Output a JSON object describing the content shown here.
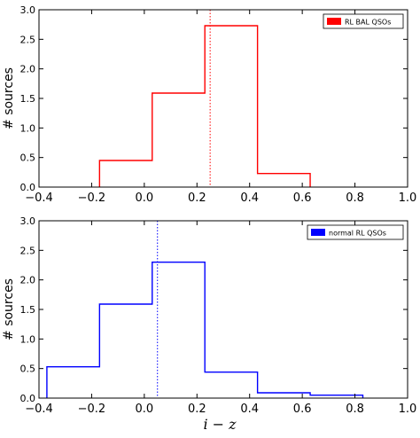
{
  "chart_data": [
    {
      "type": "histogram",
      "panel": "top",
      "title": "",
      "xlabel": "",
      "ylabel": "# sources",
      "xlim": [
        -0.4,
        1.0
      ],
      "ylim": [
        0,
        3.0
      ],
      "xticks": [
        "−0.4",
        "−0.2",
        "0.0",
        "0.2",
        "0.4",
        "0.6",
        "0.8",
        "1.0"
      ],
      "xtick_values": [
        -0.4,
        -0.2,
        0.0,
        0.2,
        0.4,
        0.6,
        0.8,
        1.0
      ],
      "yticks": [
        "0.0",
        "0.5",
        "1.0",
        "1.5",
        "2.0",
        "2.5",
        "3.0"
      ],
      "ytick_values": [
        0.0,
        0.5,
        1.0,
        1.5,
        2.0,
        2.5,
        3.0
      ],
      "bin_edges": [
        -0.17,
        0.03,
        0.23,
        0.43,
        0.63
      ],
      "values": [
        0.45,
        1.59,
        2.73,
        0.23
      ],
      "median_line": 0.25,
      "series": [
        {
          "name": "RL BAL QSOs",
          "color": "#ff0000"
        }
      ],
      "legend_position": "upper right",
      "grid": false
    },
    {
      "type": "histogram",
      "panel": "bottom",
      "title": "",
      "xlabel": "i − z",
      "ylabel": "# sources",
      "xlim": [
        -0.4,
        1.0
      ],
      "ylim": [
        0,
        3.0
      ],
      "xticks": [
        "−0.4",
        "−0.2",
        "0.0",
        "0.2",
        "0.4",
        "0.6",
        "0.8",
        "1.0"
      ],
      "xtick_values": [
        -0.4,
        -0.2,
        0.0,
        0.2,
        0.4,
        0.6,
        0.8,
        1.0
      ],
      "yticks": [
        "0.0",
        "0.5",
        "1.0",
        "1.5",
        "2.0",
        "2.5",
        "3.0"
      ],
      "ytick_values": [
        0.0,
        0.5,
        1.0,
        1.5,
        2.0,
        2.5,
        3.0
      ],
      "bin_edges": [
        -0.37,
        -0.17,
        0.03,
        0.23,
        0.43,
        0.63,
        0.83
      ],
      "values": [
        0.53,
        1.59,
        2.3,
        0.44,
        0.09,
        0.05
      ],
      "median_line": 0.05,
      "series": [
        {
          "name": "normal RL QSOs",
          "color": "#0000ff"
        }
      ],
      "legend_position": "upper right",
      "grid": false
    }
  ]
}
